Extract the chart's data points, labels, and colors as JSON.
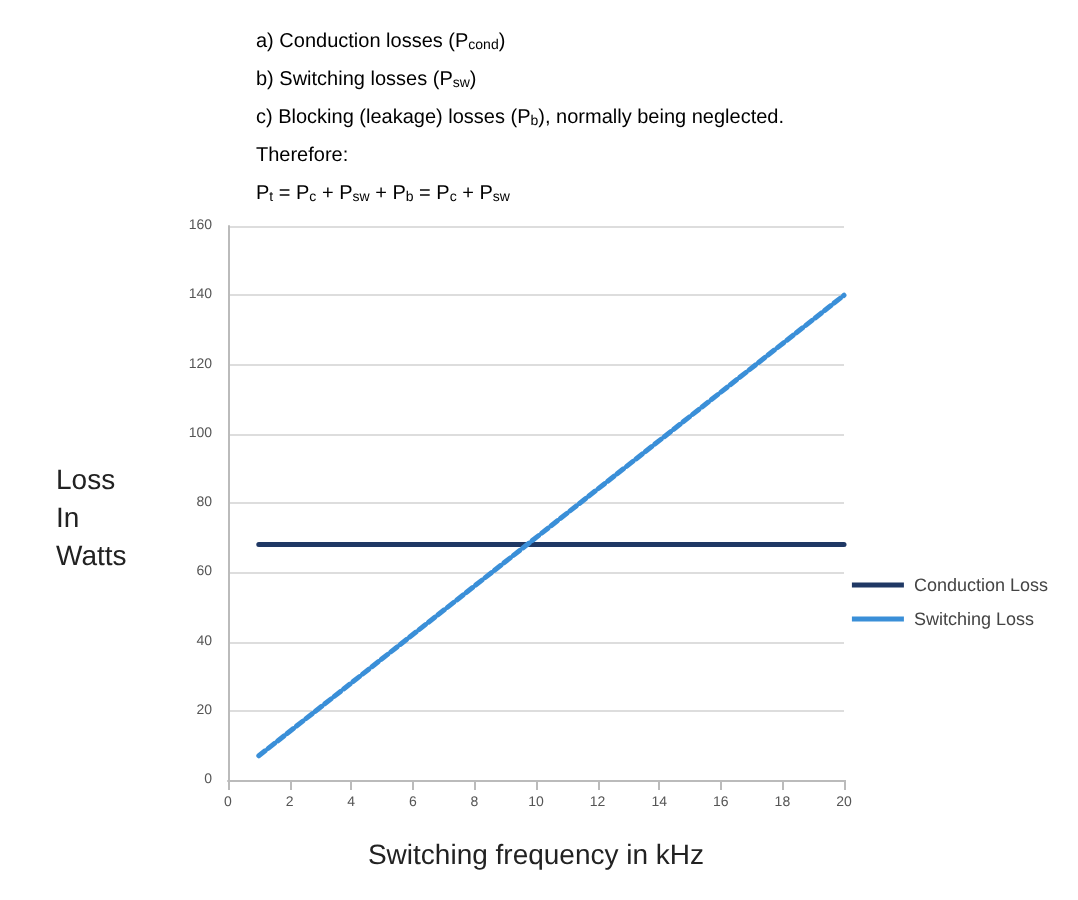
{
  "chart_data": {
    "type": "line",
    "annotations": [
      "a) Conduction losses (P$_{cond}$)",
      "b) Switching losses (P$_{sw}$)",
      "c) Blocking (leakage) losses (P$_{b}$), normally being neglected.",
      "Therefore:",
      "P$_{t}$ = P$_{c}$ + P$_{sw}$ + P$_{b}$ = P$_{c}$ + P$_{sw}$"
    ],
    "xlabel": "Switching frequency in kHz",
    "ylabel": "Loss In Watts",
    "x": [
      1,
      20
    ],
    "series": [
      {
        "name": "Conduction Loss",
        "color": "#1f3864",
        "values": [
          68,
          68
        ],
        "line_style": "solid"
      },
      {
        "name": "Switching Loss",
        "color": "#3a8fd8",
        "values": [
          7,
          140
        ],
        "line_style": "dashed"
      }
    ],
    "xlim": [
      0,
      20
    ],
    "xticks": [
      0,
      2,
      4,
      6,
      8,
      10,
      12,
      14,
      16,
      18,
      20
    ],
    "ylim": [
      0,
      160
    ],
    "yticks": [
      0,
      20,
      40,
      60,
      80,
      100,
      120,
      140,
      160
    ],
    "grid": "y",
    "legend": "right",
    "marker": "none"
  }
}
